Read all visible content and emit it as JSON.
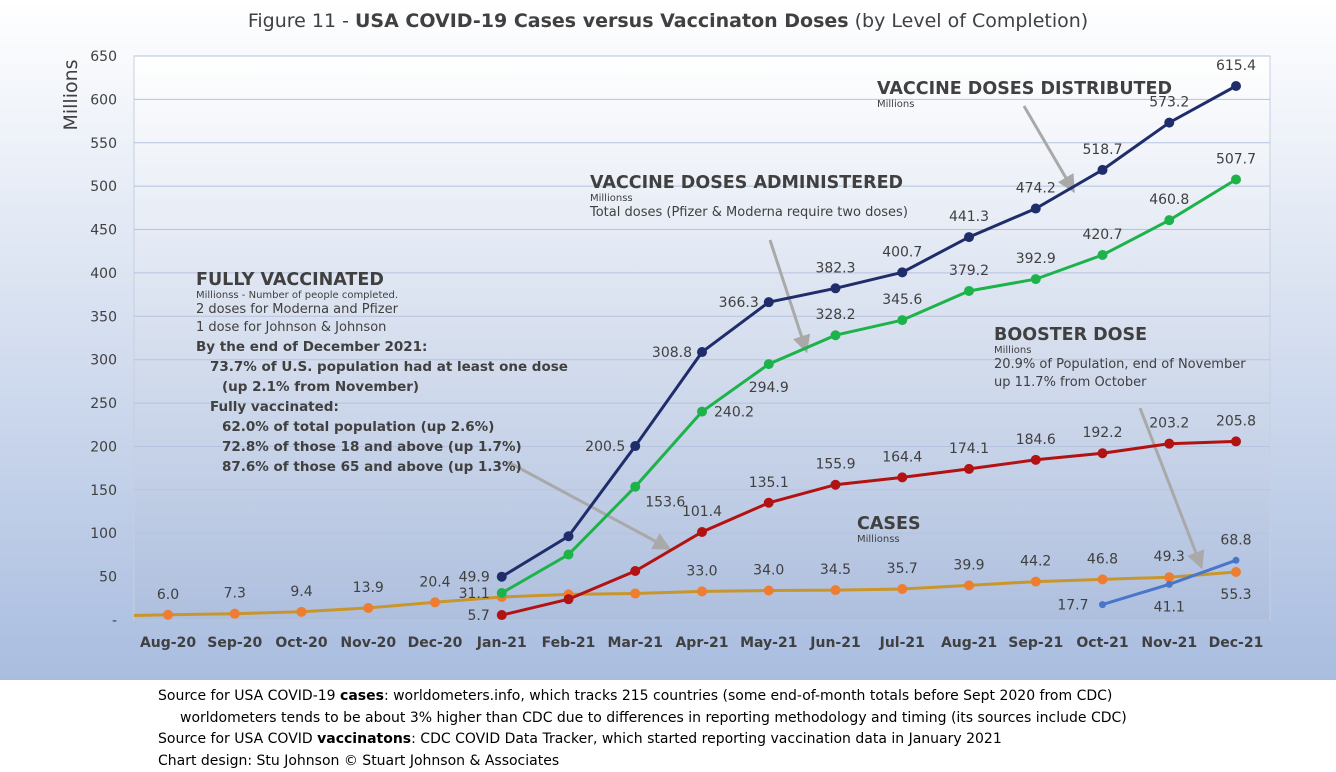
{
  "title": {
    "prefix": "Figure 11 - ",
    "bold": "USA COVID-19 Cases versus Vaccinaton Doses",
    "suffix": " (by Level of Completion)"
  },
  "colors": {
    "distributed": "#1f2d6b",
    "administered": "#1db34a",
    "fully": "#b31212",
    "cases": "#c8962a",
    "cases_marker": "#ee7d31",
    "booster": "#4a76c9",
    "arrow": "#a9a9a9",
    "plot_bg_top": "#ffffff",
    "plot_bg_bottom": "#aebfde",
    "grid": "#b5c3de"
  },
  "chart_data": {
    "type": "line",
    "ylabel": "Millions",
    "ylim": [
      0,
      650
    ],
    "yticks": [
      "-",
      "50",
      "100",
      "150",
      "200",
      "250",
      "300",
      "350",
      "400",
      "450",
      "500",
      "550",
      "600",
      "650"
    ],
    "categories": [
      "Aug-20",
      "Sep-20",
      "Oct-20",
      "Nov-20",
      "Dec-20",
      "Jan-21",
      "Feb-21",
      "Mar-21",
      "Apr-21",
      "May-21",
      "Jun-21",
      "Jul-21",
      "Aug-21",
      "Sep-21",
      "Oct-21",
      "Nov-21",
      "Dec-21"
    ],
    "grid": true,
    "series": [
      {
        "key": "distributed",
        "values": [
          null,
          null,
          null,
          null,
          null,
          49.9,
          96.5,
          200.5,
          308.8,
          366.3,
          382.3,
          400.7,
          441.3,
          474.2,
          518.7,
          573.2,
          615.4
        ],
        "labels": [
          null,
          null,
          null,
          null,
          null,
          "49.9",
          null,
          "200.5",
          "308.8",
          "366.3",
          "382.3",
          "400.7",
          "441.3",
          "474.2",
          "518.7",
          "573.2",
          "615.4"
        ]
      },
      {
        "key": "administered",
        "values": [
          null,
          null,
          null,
          null,
          null,
          31.1,
          75.5,
          153.6,
          240.2,
          294.9,
          328.2,
          345.6,
          379.2,
          392.9,
          420.7,
          460.8,
          507.7
        ],
        "labels": [
          null,
          null,
          null,
          null,
          null,
          "31.1",
          null,
          "153.6",
          "240.2",
          "294.9",
          "328.2",
          "345.6",
          "379.2",
          "392.9",
          "420.7",
          "460.8",
          "507.7"
        ]
      },
      {
        "key": "fully",
        "values": [
          null,
          null,
          null,
          null,
          null,
          5.7,
          24.0,
          56.5,
          101.4,
          135.1,
          155.9,
          164.4,
          174.1,
          184.6,
          192.2,
          203.2,
          205.8
        ],
        "labels": [
          null,
          null,
          null,
          null,
          null,
          "5.7",
          null,
          null,
          "101.4",
          "135.1",
          "155.9",
          "164.4",
          "174.1",
          "184.6",
          "192.2",
          "203.2",
          "205.8"
        ]
      },
      {
        "key": "cases",
        "values": [
          6.0,
          7.3,
          9.4,
          13.9,
          20.4,
          26.5,
          29.5,
          30.5,
          33.0,
          34.0,
          34.5,
          35.7,
          39.9,
          44.2,
          46.8,
          49.3,
          55.3
        ],
        "labels": [
          "6.0",
          "7.3",
          "9.4",
          "13.9",
          "20.4",
          null,
          null,
          null,
          "33.0",
          "34.0",
          "34.5",
          "35.7",
          "39.9",
          "44.2",
          "46.8",
          "49.3",
          "55.3"
        ]
      },
      {
        "key": "booster",
        "values": [
          null,
          null,
          null,
          null,
          null,
          null,
          null,
          null,
          null,
          null,
          null,
          null,
          null,
          null,
          17.7,
          41.1,
          68.8
        ],
        "labels": [
          null,
          null,
          null,
          null,
          null,
          null,
          null,
          null,
          null,
          null,
          null,
          null,
          null,
          null,
          "17.7",
          "41.1",
          "68.8"
        ]
      }
    ]
  },
  "annotations": {
    "distributed": {
      "head": "VACCINE DOSES DISTRIBUTED",
      "small": "Millions"
    },
    "administered": {
      "head": "VACCINE DOSES ADMINISTERED",
      "small": "Millionss",
      "line1": "Total doses (Pfizer & Moderna require two doses)"
    },
    "fully": {
      "head": "FULLY VACCINATED",
      "small": "Millionss - Number of people completed.",
      "line1": "2 doses for Moderna and Pfizer",
      "line2": "1 dose for Johnson & Johnson",
      "b1": "By the end of December 2021:",
      "b2": "73.7% of U.S. population had at least one dose",
      "b3": "(up 2.1% from November)",
      "b4": "Fully vaccinated:",
      "b5": "62.0% of total population (up 2.6%)",
      "b6": "72.8% of those 18 and above (up 1.7%)",
      "b7": "87.6% of those 65 and above (up 1.3%)"
    },
    "booster": {
      "head": "BOOSTER DOSE",
      "small": "Millions",
      "line1": "20.9% of Population, end of November",
      "line2": "up 11.7% from October"
    },
    "cases": {
      "head": "CASES",
      "small": "Millionss"
    }
  },
  "footer": {
    "line1_pre": "Source for USA COVID-19 ",
    "line1_bold": "cases",
    "line1_post": ": worldometers.info, which tracks 215 countries  (some end-of-month totals before Sept 2020 from CDC)",
    "line2": "worldometers tends to be about 3% higher than CDC due to differences in reporting methodology and timing (its sources include CDC)",
    "line3_pre": "Source for USA COVID ",
    "line3_bold": "vaccinatons",
    "line3_post": ": CDC COVID Data Tracker, which started reporting vaccination data in January 2021",
    "line4": "Chart design: Stu Johnson © Stuart Johnson & Associates"
  }
}
